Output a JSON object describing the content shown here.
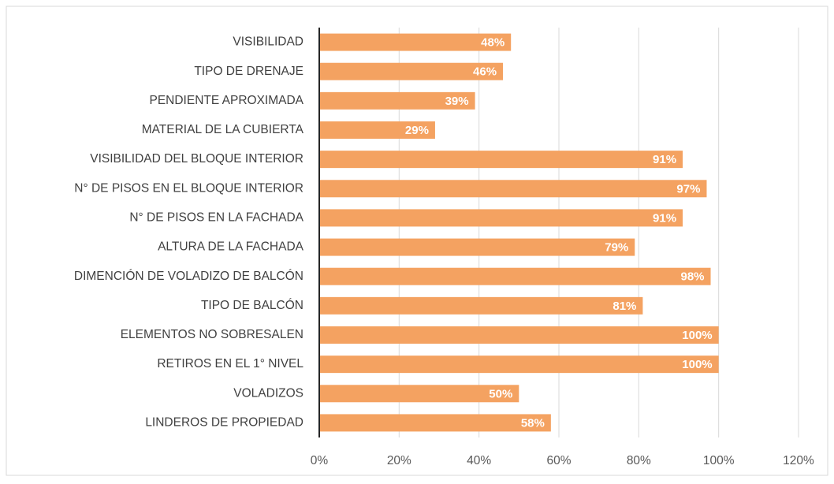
{
  "chart_data": {
    "type": "bar",
    "orientation": "horizontal",
    "categories": [
      "VISIBILIDAD",
      "TIPO DE DRENAJE",
      "PENDIENTE APROXIMADA",
      "MATERIAL DE LA CUBIERTA",
      "VISIBILIDAD DEL BLOQUE INTERIOR",
      "N° DE PISOS EN EL BLOQUE INTERIOR",
      "N° DE PISOS EN LA FACHADA",
      "ALTURA DE LA FACHADA",
      "DIMENCIÓN DE VOLADIZO DE BALCÓN",
      "TIPO DE BALCÓN",
      "ELEMENTOS NO SOBRESALEN",
      "RETIROS EN EL 1° NIVEL",
      "VOLADIZOS",
      "LINDEROS DE PROPIEDAD"
    ],
    "values": [
      48,
      46,
      39,
      29,
      91,
      97,
      91,
      79,
      98,
      81,
      100,
      100,
      50,
      58
    ],
    "value_labels": [
      "48%",
      "46%",
      "39%",
      "29%",
      "91%",
      "97%",
      "91%",
      "79%",
      "98%",
      "81%",
      "100%",
      "100%",
      "50%",
      "58%"
    ],
    "color": "#f4a261",
    "xlim": [
      0,
      120
    ],
    "xticks": [
      {
        "value": 0,
        "label": "0%"
      },
      {
        "value": 20,
        "label": "20%"
      },
      {
        "value": 40,
        "label": "40%"
      },
      {
        "value": 60,
        "label": "60%"
      },
      {
        "value": 80,
        "label": "80%"
      },
      {
        "value": 100,
        "label": "100%"
      },
      {
        "value": 120,
        "label": "120%"
      }
    ],
    "grid": true
  }
}
